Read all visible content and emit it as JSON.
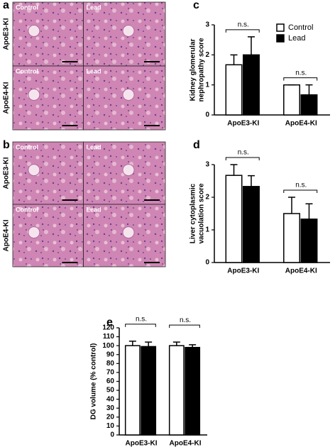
{
  "histology": [
    {
      "label": "a",
      "rows": [
        "ApoE3-KI",
        "ApoE4-KI"
      ],
      "columns": [
        "Control",
        "Lead"
      ]
    },
    {
      "label": "b",
      "rows": [
        "ApoE3-KI",
        "ApoE4-KI"
      ],
      "columns": [
        "Control",
        "Lead"
      ]
    }
  ],
  "chart_data": [
    {
      "type": "bar",
      "label": "c",
      "ylabel": [
        "Kidney glomerular",
        "nephropathy score"
      ],
      "categories": [
        "ApoE3-KI",
        "ApoE4-KI"
      ],
      "series": [
        {
          "name": "Control",
          "color": "#ffffff",
          "values": [
            1.67,
            1.0
          ],
          "errors": [
            0.33,
            0
          ]
        },
        {
          "name": "Lead",
          "color": "#000000",
          "values": [
            2.0,
            0.67
          ],
          "errors": [
            0.6,
            0.33
          ]
        }
      ],
      "ylim": [
        0,
        3
      ],
      "yticks": [
        0,
        1,
        2,
        3
      ],
      "annotations": [
        "n.s.",
        "n.s."
      ],
      "legend": "upper right"
    },
    {
      "type": "bar",
      "label": "d",
      "ylabel": [
        "Liver cytoplasmic",
        "vacuolation score"
      ],
      "categories": [
        "ApoE3-KI",
        "ApoE4-KI"
      ],
      "series": [
        {
          "color": "#ffffff",
          "values": [
            2.67,
            1.5
          ],
          "errors": [
            0.33,
            0.5
          ]
        },
        {
          "color": "#000000",
          "values": [
            2.33,
            1.33
          ],
          "errors": [
            0.33,
            0.47
          ]
        }
      ],
      "ylim": [
        0,
        3
      ],
      "yticks": [
        0,
        1,
        2,
        3
      ],
      "annotations": [
        "n.s.",
        "n.s."
      ]
    },
    {
      "type": "bar",
      "label": "e",
      "ylabel": [
        "DG volume (% control)"
      ],
      "categories": [
        "ApoE3-KI",
        "ApoE4-KI"
      ],
      "series": [
        {
          "color": "#ffffff",
          "values": [
            100,
            100
          ],
          "errors": [
            5,
            4
          ]
        },
        {
          "color": "#000000",
          "values": [
            99,
            98
          ],
          "errors": [
            5,
            3
          ]
        }
      ],
      "ylim": [
        0,
        120
      ],
      "yticks": [
        0,
        10,
        20,
        30,
        40,
        50,
        60,
        70,
        80,
        90,
        100,
        110,
        120
      ],
      "annotations": [
        "n.s.",
        "n.s."
      ]
    }
  ]
}
